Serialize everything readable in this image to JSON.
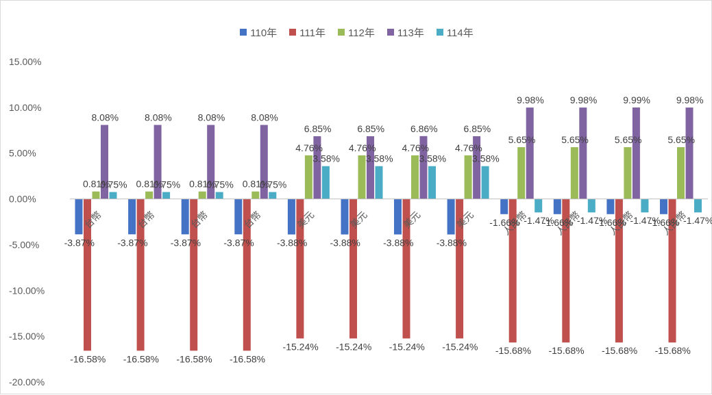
{
  "chart_data": {
    "type": "bar",
    "title": "",
    "xlabel": "",
    "ylabel": "",
    "ylim": [
      -0.2,
      0.15
    ],
    "yticks": [
      "15.00%",
      "10.00%",
      "5.00%",
      "0.00%",
      "-5.00%",
      "-10.00%",
      "-15.00%",
      "-20.00%"
    ],
    "legend_position": "top",
    "categories": [
      "台幣",
      "台幣",
      "台幣",
      "台幣",
      "美元",
      "美元",
      "美元",
      "美元",
      "人民幣",
      "人民幣",
      "人民幣",
      "人民幣"
    ],
    "series": [
      {
        "name": "110年",
        "color": "#4472c4",
        "values": [
          -3.87,
          -3.87,
          -3.87,
          -3.87,
          -3.88,
          -3.88,
          -3.88,
          -3.88,
          -1.66,
          -1.66,
          -1.66,
          -1.66
        ],
        "labels": [
          "-3.87%",
          "-3.87%",
          "-3.87%",
          "-3.87%",
          "-3.88%",
          "-3.88%",
          "-3.88%",
          "-3.88%",
          "-1.66%",
          "-1.66%",
          "-1.66%",
          "-1.66%"
        ]
      },
      {
        "name": "111年",
        "color": "#c0504d",
        "values": [
          -16.58,
          -16.58,
          -16.58,
          -16.58,
          -15.24,
          -15.24,
          -15.24,
          -15.24,
          -15.68,
          -15.68,
          -15.68,
          -15.68
        ],
        "labels": [
          "-16.58%",
          "-16.58%",
          "-16.58%",
          "-16.58%",
          "-15.24%",
          "-15.24%",
          "-15.24%",
          "-15.24%",
          "-15.68%",
          "-15.68%",
          "-15.68%",
          "-15.68%"
        ]
      },
      {
        "name": "112年",
        "color": "#9bbb59",
        "values": [
          0.81,
          0.81,
          0.81,
          0.81,
          4.76,
          4.76,
          4.76,
          4.76,
          5.65,
          5.65,
          5.65,
          5.65
        ],
        "labels": [
          "0.81%",
          "0.81%",
          "0.81%",
          "0.81%",
          "4.76%",
          "4.76%",
          "4.76%",
          "4.76%",
          "5.65%",
          "5.65%",
          "5.65%",
          "5.65%"
        ]
      },
      {
        "name": "113年",
        "color": "#8064a2",
        "values": [
          8.08,
          8.08,
          8.08,
          8.08,
          6.85,
          6.85,
          6.86,
          6.85,
          9.98,
          9.98,
          9.99,
          9.98
        ],
        "labels": [
          "8.08%",
          "8.08%",
          "8.08%",
          "8.08%",
          "6.85%",
          "6.85%",
          "6.86%",
          "6.85%",
          "9.98%",
          "9.98%",
          "9.99%",
          "9.98%"
        ]
      },
      {
        "name": "114年",
        "color": "#4bacc6",
        "values": [
          0.75,
          0.75,
          0.75,
          0.75,
          3.58,
          3.58,
          3.58,
          3.58,
          -1.47,
          -1.47,
          -1.47,
          -1.47
        ],
        "labels": [
          "0.75%",
          "0.75%",
          "0.75%",
          "0.75%",
          "3.58%",
          "3.58%",
          "3.58%",
          "3.58%",
          "-1.47%",
          "-1.47%",
          "-1.47%",
          "-1.47%"
        ]
      }
    ]
  }
}
